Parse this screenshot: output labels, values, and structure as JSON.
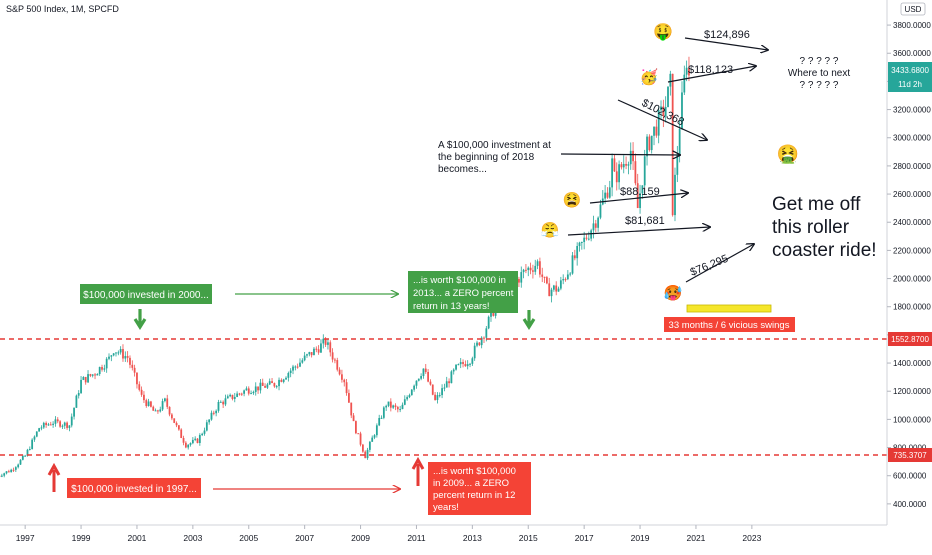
{
  "header": {
    "symbol_title": "S&P 500 Index, 1M, SPCFD",
    "currency": "USD"
  },
  "price_tags": {
    "last_price": "3433.6800",
    "countdown": "11d 2h",
    "level_high": "1552.8700",
    "level_low": "735.3707"
  },
  "annotations": {
    "invested_2000": "$100,000 invested in 2000...",
    "worth_2013": [
      "...is worth $100,000 in",
      "2013... a ZERO percent",
      "return in 13 years!"
    ],
    "invested_1997": "$100,000 invested in 1997...",
    "worth_2009": [
      "...is worth $100,000",
      "in 2009... a ZERO",
      "percent return in 12",
      "years!"
    ],
    "investment_2018": [
      "A $100,000 investment at",
      "the beginning of 2018",
      "becomes..."
    ],
    "value_124896": "$124,896",
    "value_118123": "$118,123",
    "value_102368": "$102,368",
    "value_88159": "$88.159",
    "value_81681": "$81,681",
    "value_76295": "$76,295",
    "where_next": [
      "? ? ? ? ?",
      "Where to next",
      "? ? ? ? ?"
    ],
    "roller_coaster": [
      "Get me off",
      "this roller",
      "coaster ride!"
    ],
    "swings": "33 months / 6 vicious swings"
  },
  "emojis": {
    "money_face": "🤑",
    "party_face": "🥳",
    "nauseated_face": "🤮",
    "weary_face": "😫",
    "steam_face": "😤",
    "hot_face": "🥵"
  },
  "colors": {
    "up_candle": "#26a69a",
    "down_candle": "#ef5350",
    "dashed_level": "#e53935",
    "label_green": "#43a047",
    "label_red": "#f44336",
    "arrow_green": "#43a047",
    "arrow_red": "#e53935",
    "price_tag": "#26a69a",
    "highlight_bar": "#f5e62b"
  },
  "chart_data": {
    "type": "candlestick",
    "title": "S&P 500 Index, 1M, SPCFD",
    "x_axis_labels": [
      "1997",
      "1999",
      "2001",
      "2003",
      "2005",
      "2007",
      "2009",
      "2011",
      "2013",
      "2015",
      "2017",
      "2019",
      "2021",
      "2023"
    ],
    "y_axis_labels": [
      "400.0000",
      "600.0000",
      "800.0000",
      "1000.0000",
      "1200.0000",
      "1400.0000",
      "1600.0000",
      "1800.0000",
      "2000.0000",
      "2200.0000",
      "2400.0000",
      "2600.0000",
      "2800.0000",
      "3000.0000",
      "3200.0000",
      "3400.0000",
      "3600.0000",
      "3800.0000"
    ],
    "ylim": [
      250,
      3900
    ],
    "xlim": [
      1996.1,
      2024.5
    ],
    "reference_levels": [
      1552.87,
      735.37
    ],
    "series": [
      {
        "name": "",
        "points": [
          {
            "date": "1996-01",
            "close": 600
          },
          {
            "date": "1996-07",
            "close": 640
          },
          {
            "date": "1997-01",
            "close": 740
          },
          {
            "date": "1997-07",
            "close": 940
          },
          {
            "date": "1998-01",
            "close": 980
          },
          {
            "date": "1998-08",
            "close": 960
          },
          {
            "date": "1999-01",
            "close": 1270
          },
          {
            "date": "1999-07",
            "close": 1330
          },
          {
            "date": "2000-01",
            "close": 1430
          },
          {
            "date": "2000-03",
            "close": 1500
          },
          {
            "date": "2000-09",
            "close": 1440
          },
          {
            "date": "2001-03",
            "close": 1160
          },
          {
            "date": "2001-09",
            "close": 1040
          },
          {
            "date": "2002-01",
            "close": 1130
          },
          {
            "date": "2002-07",
            "close": 910
          },
          {
            "date": "2002-10",
            "close": 820
          },
          {
            "date": "2003-03",
            "close": 850
          },
          {
            "date": "2003-12",
            "close": 1110
          },
          {
            "date": "2004-12",
            "close": 1210
          },
          {
            "date": "2005-12",
            "close": 1250
          },
          {
            "date": "2006-12",
            "close": 1420
          },
          {
            "date": "2007-10",
            "close": 1550
          },
          {
            "date": "2008-06",
            "close": 1280
          },
          {
            "date": "2008-10",
            "close": 970
          },
          {
            "date": "2009-03",
            "close": 740
          },
          {
            "date": "2009-12",
            "close": 1110
          },
          {
            "date": "2010-06",
            "close": 1060
          },
          {
            "date": "2010-12",
            "close": 1260
          },
          {
            "date": "2011-04",
            "close": 1360
          },
          {
            "date": "2011-09",
            "close": 1130
          },
          {
            "date": "2012-06",
            "close": 1360
          },
          {
            "date": "2012-12",
            "close": 1430
          },
          {
            "date": "2013-06",
            "close": 1620
          },
          {
            "date": "2013-12",
            "close": 1850
          },
          {
            "date": "2014-12",
            "close": 2060
          },
          {
            "date": "2015-05",
            "close": 2110
          },
          {
            "date": "2015-09",
            "close": 1920
          },
          {
            "date": "2016-02",
            "close": 1930
          },
          {
            "date": "2016-12",
            "close": 2240
          },
          {
            "date": "2017-06",
            "close": 2420
          },
          {
            "date": "2017-12",
            "close": 2680
          },
          {
            "date": "2018-01",
            "close": 2820
          },
          {
            "date": "2018-02",
            "close": 2710
          },
          {
            "date": "2018-09",
            "close": 2910
          },
          {
            "date": "2018-12",
            "close": 2500
          },
          {
            "date": "2019-04",
            "close": 2940
          },
          {
            "date": "2019-12",
            "close": 3230
          },
          {
            "date": "2020-02",
            "close": 3380
          },
          {
            "date": "2020-03",
            "close": 2500
          },
          {
            "date": "2020-06",
            "close": 3100
          },
          {
            "date": "2020-09",
            "close": 3560
          },
          {
            "date": "2020-10",
            "close": 3434
          }
        ]
      }
    ]
  }
}
